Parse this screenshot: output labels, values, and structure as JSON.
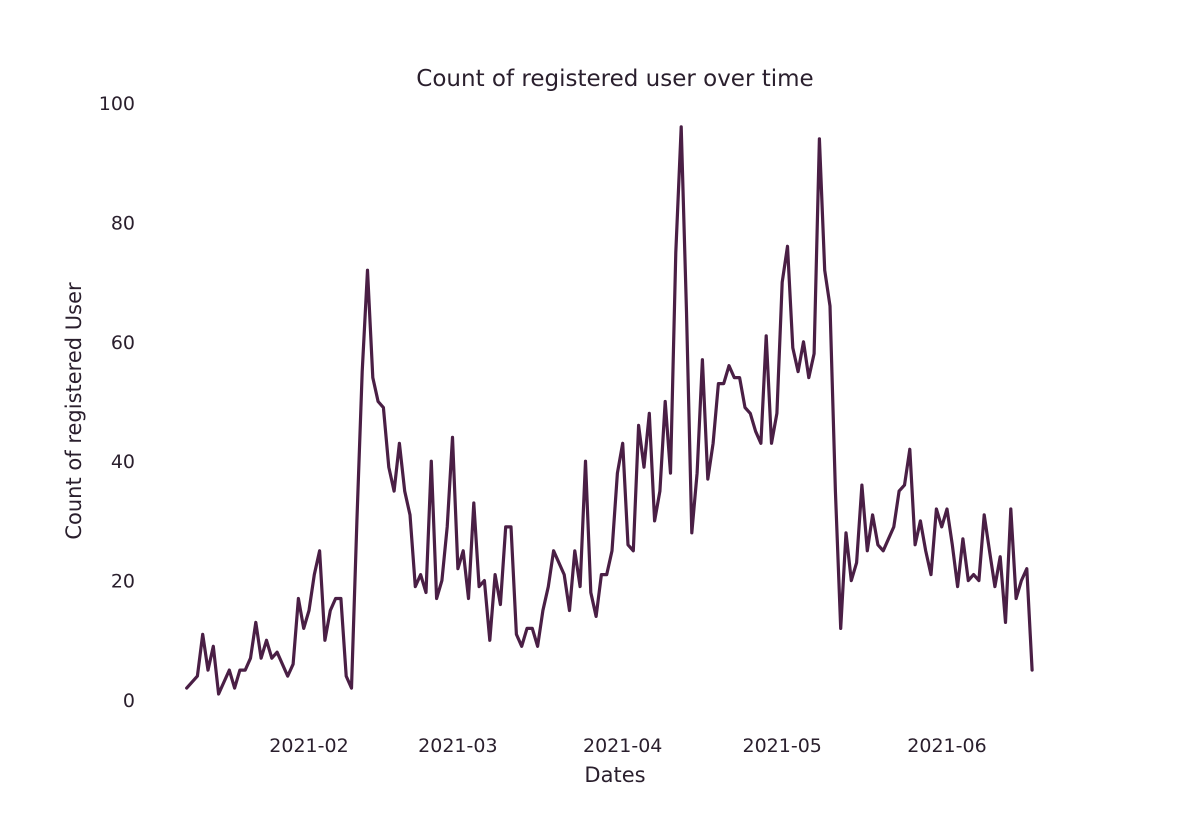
{
  "chart_data": {
    "type": "line",
    "title": "Count of registered user over time",
    "xlabel": "Dates",
    "ylabel": "Count of registered User",
    "x_tick_labels": [
      "2021-02",
      "2021-03",
      "2021-04",
      "2021-05",
      "2021-06"
    ],
    "y_tick_labels": [
      "0",
      "20",
      "40",
      "60",
      "80",
      "100"
    ],
    "ylim": [
      0,
      100
    ],
    "grid": false,
    "line_color": "#4a1f45",
    "series": [
      {
        "x": [
          "2021-01-09",
          "2021-01-11",
          "2021-01-12",
          "2021-01-13",
          "2021-01-14",
          "2021-01-15",
          "2021-01-17",
          "2021-01-18",
          "2021-01-19",
          "2021-01-20",
          "2021-01-21",
          "2021-01-22",
          "2021-01-23",
          "2021-01-24",
          "2021-01-25",
          "2021-01-26",
          "2021-01-28",
          "2021-01-29",
          "2021-01-30",
          "2021-01-31",
          "2021-02-01",
          "2021-02-02",
          "2021-02-03",
          "2021-02-04",
          "2021-02-05",
          "2021-02-06",
          "2021-02-07",
          "2021-02-08",
          "2021-02-09",
          "2021-02-10",
          "2021-02-11",
          "2021-02-12",
          "2021-02-13",
          "2021-02-14",
          "2021-02-15",
          "2021-02-16",
          "2021-02-17",
          "2021-02-18",
          "2021-02-19",
          "2021-02-20",
          "2021-02-21",
          "2021-02-22",
          "2021-02-23",
          "2021-02-24",
          "2021-02-25",
          "2021-02-26",
          "2021-02-27",
          "2021-02-28",
          "2021-03-01",
          "2021-03-02",
          "2021-03-03",
          "2021-03-04",
          "2021-03-05",
          "2021-03-06",
          "2021-03-07",
          "2021-03-08",
          "2021-03-09",
          "2021-03-10",
          "2021-03-11",
          "2021-03-12",
          "2021-03-13",
          "2021-03-14",
          "2021-03-15",
          "2021-03-16",
          "2021-03-17",
          "2021-03-18",
          "2021-03-19",
          "2021-03-21",
          "2021-03-22",
          "2021-03-23",
          "2021-03-24",
          "2021-03-25",
          "2021-03-26",
          "2021-03-27",
          "2021-03-28",
          "2021-03-29",
          "2021-03-30",
          "2021-03-31",
          "2021-04-01",
          "2021-04-02",
          "2021-04-03",
          "2021-04-04",
          "2021-04-05",
          "2021-04-06",
          "2021-04-07",
          "2021-04-08",
          "2021-04-09",
          "2021-04-10",
          "2021-04-11",
          "2021-04-12",
          "2021-04-13",
          "2021-04-14",
          "2021-04-15",
          "2021-04-16",
          "2021-04-17",
          "2021-04-18",
          "2021-04-19",
          "2021-04-20",
          "2021-04-21",
          "2021-04-22",
          "2021-04-23",
          "2021-04-24",
          "2021-04-25",
          "2021-04-26",
          "2021-04-27",
          "2021-04-28",
          "2021-04-29",
          "2021-04-30",
          "2021-05-01",
          "2021-05-02",
          "2021-05-03",
          "2021-05-04",
          "2021-05-05",
          "2021-05-06",
          "2021-05-07",
          "2021-05-08",
          "2021-05-09",
          "2021-05-10",
          "2021-05-11",
          "2021-05-12",
          "2021-05-13",
          "2021-05-14",
          "2021-05-15",
          "2021-05-16",
          "2021-05-17",
          "2021-05-18",
          "2021-05-19",
          "2021-05-20",
          "2021-05-21",
          "2021-05-22",
          "2021-05-23",
          "2021-05-24",
          "2021-05-25",
          "2021-05-26",
          "2021-05-27",
          "2021-05-28",
          "2021-05-29",
          "2021-05-30",
          "2021-05-31",
          "2021-06-01",
          "2021-06-02",
          "2021-06-03",
          "2021-06-04",
          "2021-06-05",
          "2021-06-06",
          "2021-06-07",
          "2021-06-08",
          "2021-06-09",
          "2021-06-10",
          "2021-06-11",
          "2021-06-12",
          "2021-06-13",
          "2021-06-14",
          "2021-06-15",
          "2021-06-16",
          "2021-06-17"
        ],
        "values": [
          2,
          4,
          11,
          5,
          9,
          1,
          5,
          2,
          5,
          5,
          7,
          13,
          7,
          10,
          7,
          8,
          4,
          6,
          17,
          12,
          15,
          21,
          25,
          10,
          15,
          17,
          17,
          4,
          2,
          30,
          55,
          72,
          54,
          50,
          49,
          39,
          35,
          43,
          35,
          31,
          19,
          21,
          18,
          40,
          17,
          20,
          29,
          44,
          22,
          25,
          17,
          33,
          19,
          20,
          10,
          21,
          16,
          29,
          29,
          11,
          9,
          12,
          12,
          9,
          15,
          19,
          25,
          21,
          15,
          25,
          19,
          40,
          18,
          14,
          21,
          21,
          25,
          38,
          43,
          26,
          25,
          46,
          39,
          48,
          30,
          35,
          50,
          38,
          75,
          96,
          65,
          28,
          38,
          57,
          37,
          43,
          53,
          53,
          56,
          54,
          54,
          49,
          48,
          45,
          43,
          61,
          43,
          48,
          70,
          76,
          59,
          55,
          60,
          54,
          58,
          94,
          72,
          66,
          35,
          12,
          28,
          20,
          23,
          36,
          25,
          31,
          26,
          25,
          27,
          29,
          35,
          36,
          42,
          26,
          30,
          25,
          21,
          32,
          29,
          32,
          26,
          19,
          27,
          20,
          21,
          20,
          31,
          25,
          19,
          24,
          13,
          32,
          17,
          20,
          22,
          5
        ]
      }
    ]
  }
}
